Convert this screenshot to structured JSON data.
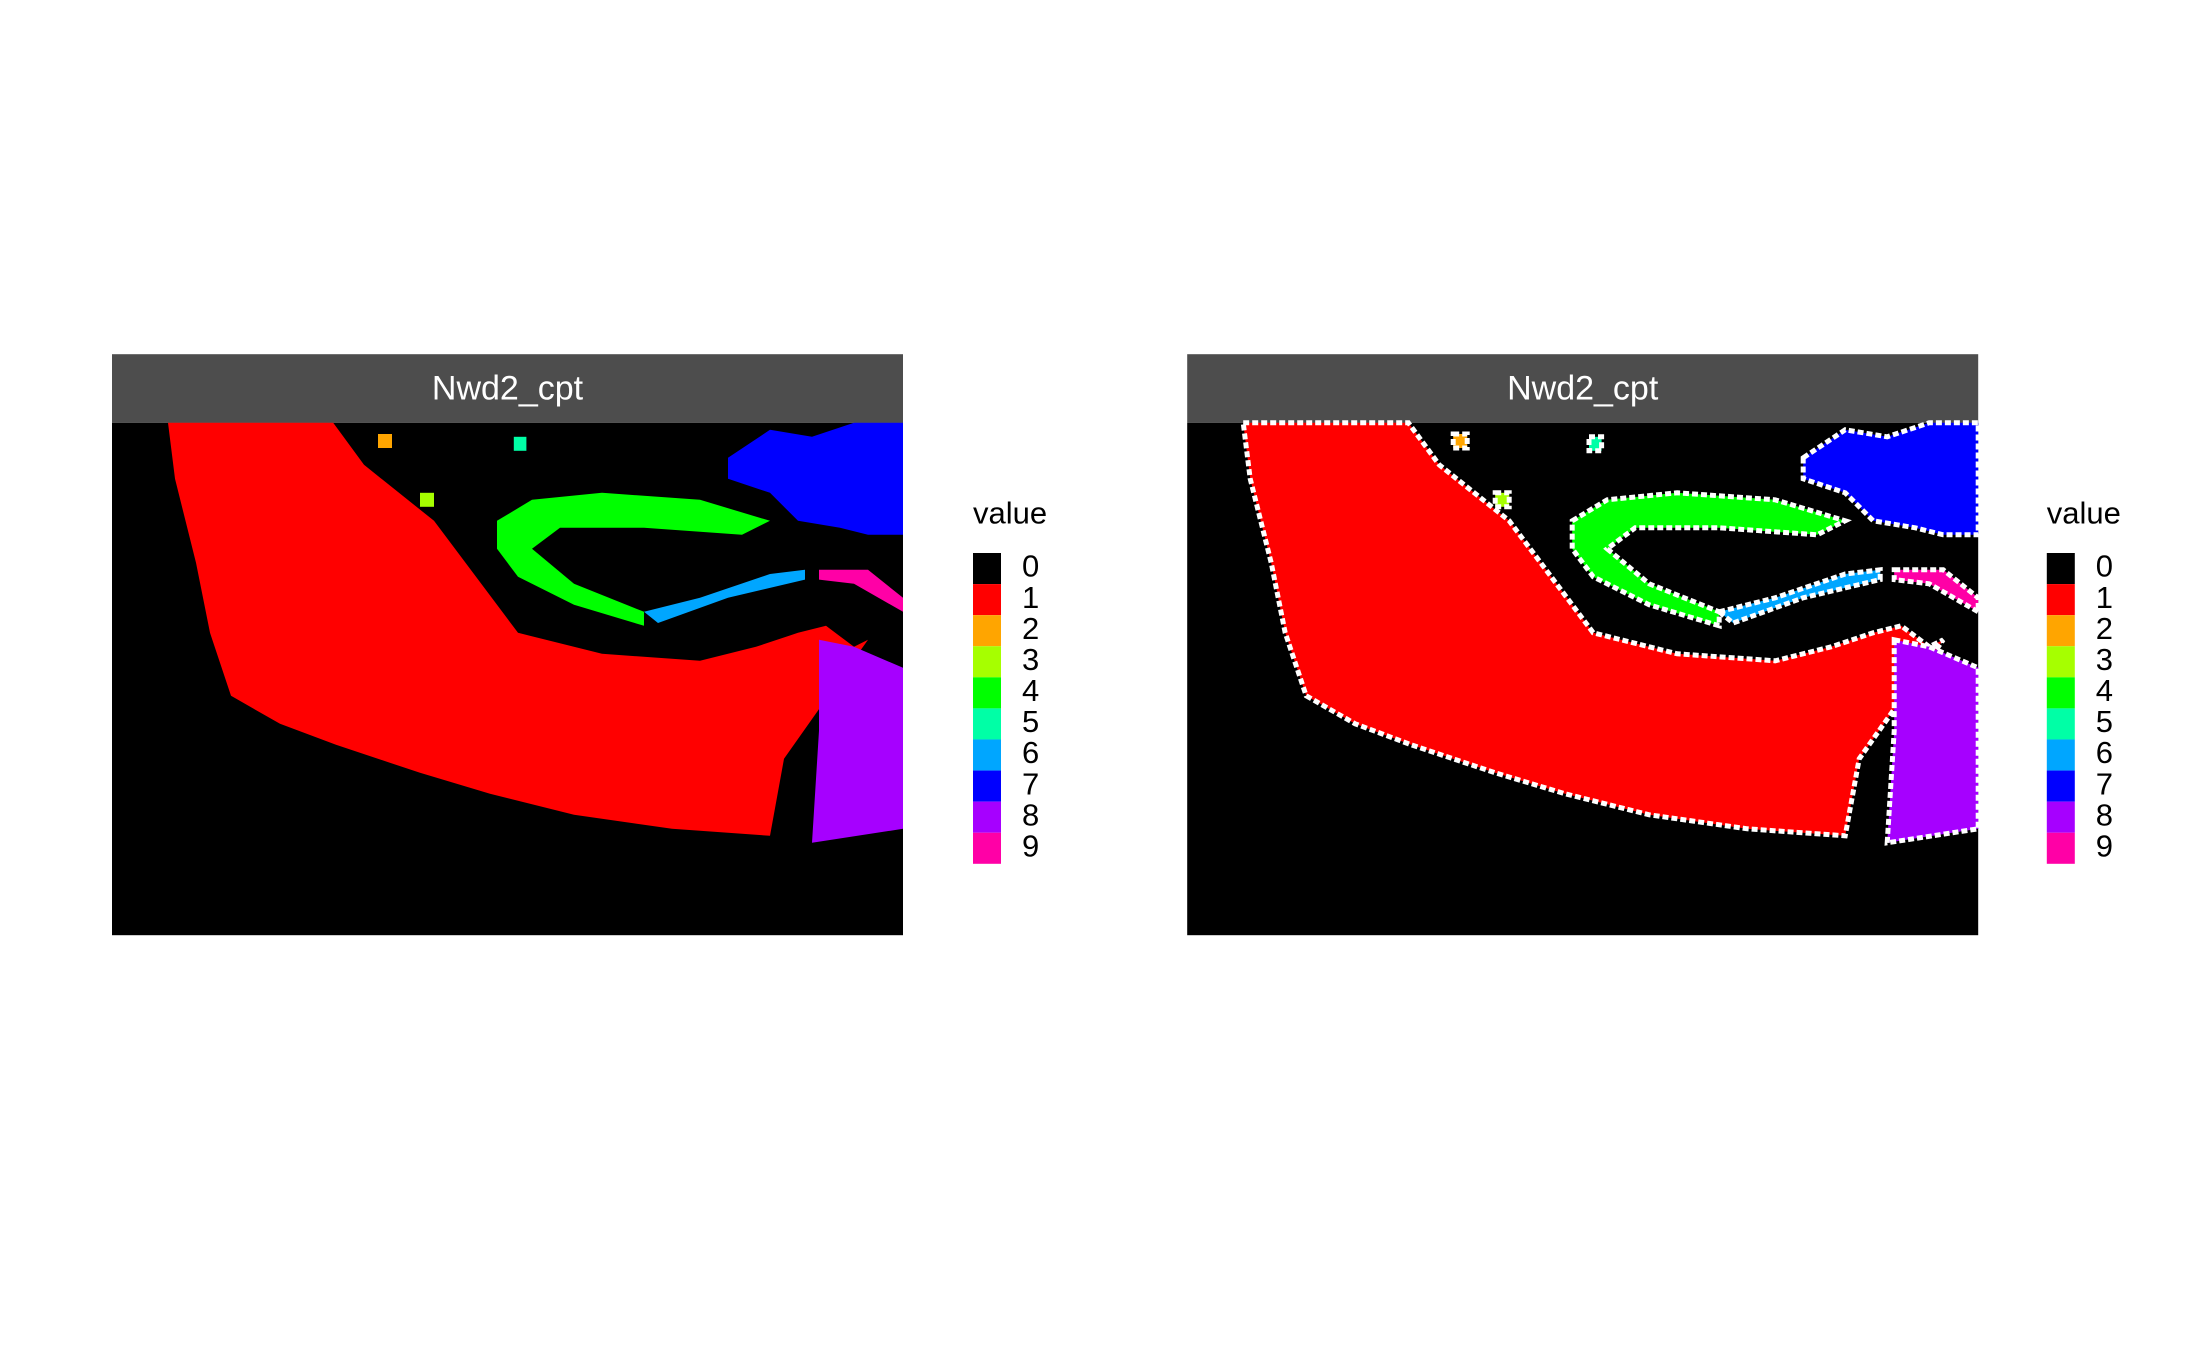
{
  "panels": [
    {
      "title": "Nwd2_cpt"
    },
    {
      "title": "Nwd2_cpt"
    }
  ],
  "legend": {
    "title": "value",
    "labels": [
      "0",
      "1",
      "2",
      "3",
      "4",
      "5",
      "6",
      "7",
      "8",
      "9"
    ],
    "colors": [
      "#000000",
      "#ff0000",
      "#ffa500",
      "#a6ff00",
      "#00ff00",
      "#00ffa6",
      "#00a6ff",
      "#0000ff",
      "#a600ff",
      "#ff00a6"
    ]
  }
}
